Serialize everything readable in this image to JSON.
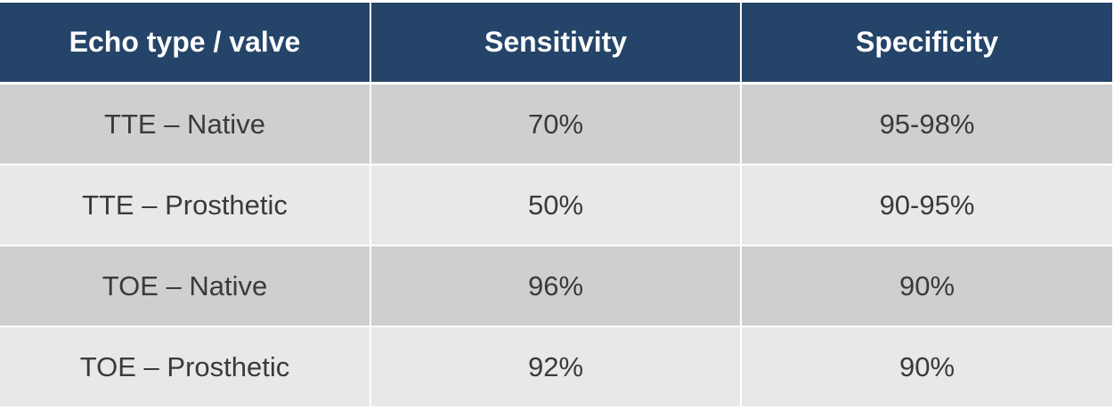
{
  "table": {
    "headers": [
      "Echo type / valve",
      "Sensitivity",
      "Specificity"
    ],
    "rows": [
      [
        "TTE – Native",
        "70%",
        "95-98%"
      ],
      [
        "TTE – Prosthetic",
        "50%",
        "90-95%"
      ],
      [
        "TOE – Native",
        "96%",
        "90%"
      ],
      [
        "TOE – Prosthetic",
        "92%",
        "90%"
      ]
    ]
  },
  "colors": {
    "header_bg": "#254469",
    "header_text": "#ffffff",
    "row_odd_bg": "#cfcfd2",
    "row_even_bg": "#e8e8ea",
    "cell_text": "#3a3a3a"
  }
}
